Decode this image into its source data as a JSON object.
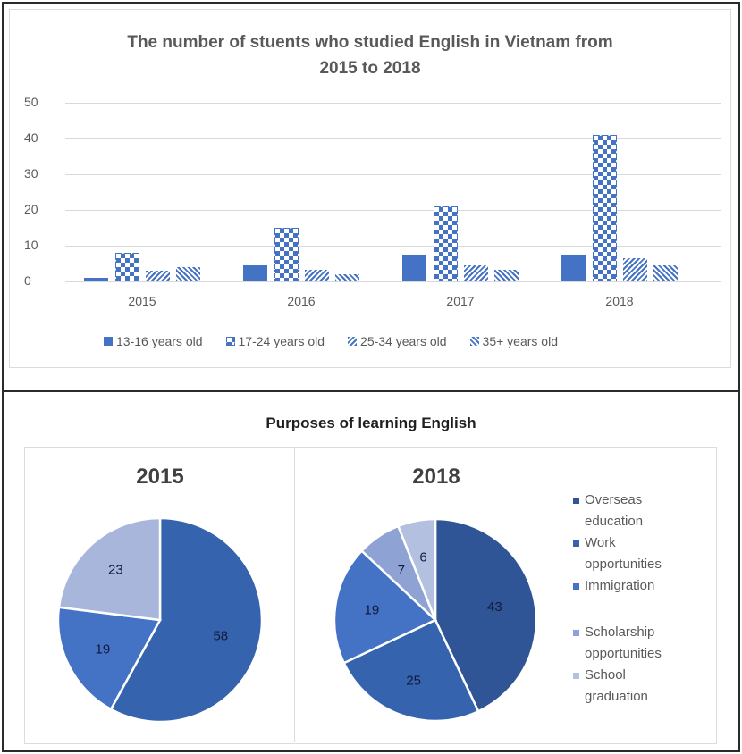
{
  "top_chart": {
    "title_line1": "The number of stuents who studied English in Vietnam from",
    "title_line2": "2015 to 2018",
    "yticks": [
      "50",
      "40",
      "30",
      "20",
      "10",
      "0"
    ],
    "xticks": [
      "2015",
      "2016",
      "2017",
      "2018"
    ],
    "legend": [
      "13-16 years old",
      "17-24 years old",
      "25-34 years old",
      "35+ years old"
    ]
  },
  "bottom_chart": {
    "title": "Purposes of learning English",
    "pie_2015_year": "2015",
    "pie_2018_year": "2018",
    "legend": [
      {
        "line1": "Overseas",
        "line2": "education",
        "color": "#2f5597"
      },
      {
        "line1": "Work",
        "line2": "opportunities",
        "color": "#3563ae"
      },
      {
        "line1": "Immigration",
        "line2": "",
        "color": "#4472c4"
      },
      {
        "line1": "Scholarship",
        "line2": "opportunities",
        "color": "#8fa2d4"
      },
      {
        "line1": "School",
        "line2": "graduation",
        "color": "#b4c0e0"
      }
    ]
  },
  "colors": {
    "bar_blue": "#4472c4",
    "frame": "#2b2b2b",
    "grid": "#d9d9d9",
    "text": "#595959"
  },
  "chart_data": [
    {
      "type": "bar",
      "title": "The number of stuents who studied English in Vietnam from 2015 to 2018",
      "categories": [
        "2015",
        "2016",
        "2017",
        "2018"
      ],
      "series": [
        {
          "name": "13-16 years old",
          "pattern": "solid",
          "values": [
            1,
            4.5,
            7.5,
            7.5
          ]
        },
        {
          "name": "17-24 years old",
          "pattern": "checker",
          "values": [
            8,
            15,
            21,
            41
          ]
        },
        {
          "name": "25-34 years old",
          "pattern": "forward-diagonal",
          "values": [
            3,
            3.2,
            4.5,
            6.5
          ]
        },
        {
          "name": "35+ years old",
          "pattern": "backward-diagonal",
          "values": [
            4,
            2,
            3.3,
            4.5
          ]
        }
      ],
      "xlabel": "",
      "ylabel": "",
      "ylim": [
        0,
        50
      ],
      "yticks": [
        0,
        10,
        20,
        30,
        40,
        50
      ],
      "grid": true,
      "legend_position": "bottom"
    },
    {
      "type": "pie",
      "title": "Purposes of learning English — 2015",
      "labels": [
        "Overseas education",
        "Immigration",
        "Scholarship opportunities"
      ],
      "values": [
        58,
        19,
        23
      ],
      "colors": [
        "#3563ae",
        "#4472c4",
        "#a9b6dc"
      ],
      "legend_position": "right"
    },
    {
      "type": "pie",
      "title": "Purposes of learning English — 2018",
      "labels": [
        "Overseas education",
        "Work opportunities",
        "Immigration",
        "Scholarship opportunities",
        "School graduation"
      ],
      "values": [
        43,
        25,
        19,
        7,
        6
      ],
      "colors": [
        "#2f5597",
        "#3563ae",
        "#4472c4",
        "#8fa2d4",
        "#b4c0e0"
      ],
      "legend_position": "right"
    }
  ]
}
